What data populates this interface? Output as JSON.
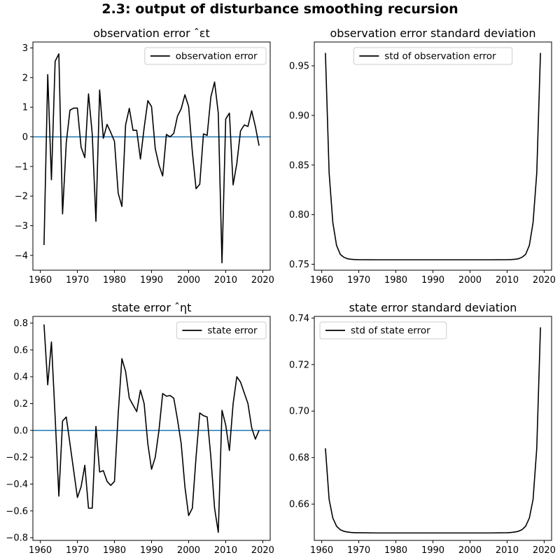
{
  "figure": {
    "suptitle": "2.3: output of disturbance smoothing recursion"
  },
  "chart_data": [
    {
      "type": "line",
      "title": "observation error ˆεt",
      "xlabel": "",
      "ylabel": "",
      "xlim": [
        1958,
        2022
      ],
      "ylim": [
        -4.5,
        3.2
      ],
      "xticks": [
        1960,
        1970,
        1980,
        1990,
        2000,
        2010,
        2020
      ],
      "yticks": [
        -4,
        -3,
        -2,
        -1,
        0,
        1,
        2,
        3
      ],
      "legend_position": "upper-right",
      "zero_line": {
        "y": 0,
        "color": "#1f77b4"
      },
      "series": [
        {
          "name": "observation error",
          "color": "#000000",
          "x": [
            1961,
            1962,
            1963,
            1964,
            1965,
            1966,
            1967,
            1968,
            1969,
            1970,
            1971,
            1972,
            1973,
            1974,
            1975,
            1976,
            1977,
            1978,
            1979,
            1980,
            1981,
            1982,
            1983,
            1984,
            1985,
            1986,
            1987,
            1988,
            1989,
            1990,
            1991,
            1992,
            1993,
            1994,
            1995,
            1996,
            1997,
            1998,
            1999,
            2000,
            2001,
            2002,
            2003,
            2004,
            2005,
            2006,
            2007,
            2008,
            2009,
            2010,
            2011,
            2012,
            2013,
            2014,
            2015,
            2016,
            2017,
            2018,
            2019
          ],
          "values": [
            -3.65,
            2.1,
            -1.45,
            2.55,
            2.8,
            -2.6,
            -0.2,
            0.9,
            0.97,
            0.97,
            -0.35,
            -0.7,
            1.45,
            0.1,
            -2.85,
            1.58,
            -0.05,
            0.42,
            0.15,
            -0.15,
            -1.9,
            -2.35,
            0.4,
            0.96,
            0.22,
            0.22,
            -0.75,
            0.3,
            1.22,
            1.02,
            -0.4,
            -0.95,
            -1.32,
            0.08,
            0.0,
            0.12,
            0.7,
            0.95,
            1.42,
            1.02,
            -0.5,
            -1.75,
            -1.6,
            0.1,
            0.05,
            1.35,
            1.85,
            0.8,
            -4.25,
            0.6,
            0.8,
            -1.62,
            -0.9,
            0.2,
            0.4,
            0.35,
            0.88,
            0.35,
            -0.3
          ]
        }
      ]
    },
    {
      "type": "line",
      "title": "observation error standard deviation",
      "xlabel": "",
      "ylabel": "",
      "xlim": [
        1958,
        2022
      ],
      "ylim": [
        0.744,
        0.974
      ],
      "xticks": [
        1960,
        1970,
        1980,
        1990,
        2000,
        2010,
        2020
      ],
      "yticks": [
        0.75,
        0.8,
        0.85,
        0.9,
        0.95
      ],
      "yticks_labels": [
        "0.75",
        "0.80",
        "0.85",
        "0.90",
        "0.95"
      ],
      "legend_position": "upper-center",
      "series": [
        {
          "name": "std of observation error",
          "color": "#000000",
          "x": [
            1961,
            1962,
            1963,
            1964,
            1965,
            1966,
            1967,
            1968,
            1969,
            1970,
            1975,
            1980,
            1985,
            1990,
            1995,
            2000,
            2005,
            2010,
            2011,
            2012,
            2013,
            2014,
            2015,
            2016,
            2017,
            2018,
            2019
          ],
          "values": [
            0.963,
            0.842,
            0.792,
            0.769,
            0.76,
            0.757,
            0.7555,
            0.755,
            0.7547,
            0.7546,
            0.7545,
            0.7545,
            0.7545,
            0.7545,
            0.7545,
            0.7545,
            0.7545,
            0.7546,
            0.7547,
            0.755,
            0.7555,
            0.757,
            0.76,
            0.769,
            0.792,
            0.842,
            0.963
          ]
        }
      ]
    },
    {
      "type": "line",
      "title": "state error ˆηt",
      "xlabel": "",
      "ylabel": "",
      "xlim": [
        1958,
        2022
      ],
      "ylim": [
        -0.82,
        0.85
      ],
      "xticks": [
        1960,
        1970,
        1980,
        1990,
        2000,
        2010,
        2020
      ],
      "yticks": [
        -0.8,
        -0.6,
        -0.4,
        -0.2,
        0.0,
        0.2,
        0.4,
        0.6,
        0.8
      ],
      "yticks_labels": [
        "−0.8",
        "−0.6",
        "−0.4",
        "−0.2",
        "0.0",
        "0.2",
        "0.4",
        "0.6",
        "0.8"
      ],
      "legend_position": "upper-right",
      "zero_line": {
        "y": 0,
        "color": "#1f77b4"
      },
      "series": [
        {
          "name": "state error",
          "color": "#000000",
          "x": [
            1961,
            1962,
            1963,
            1964,
            1965,
            1966,
            1967,
            1968,
            1969,
            1970,
            1971,
            1972,
            1973,
            1974,
            1975,
            1976,
            1977,
            1978,
            1979,
            1980,
            1981,
            1982,
            1983,
            1984,
            1985,
            1986,
            1987,
            1988,
            1989,
            1990,
            1991,
            1992,
            1993,
            1994,
            1995,
            1996,
            1997,
            1998,
            1999,
            2000,
            2001,
            2002,
            2003,
            2004,
            2005,
            2006,
            2007,
            2008,
            2009,
            2010,
            2011,
            2012,
            2013,
            2014,
            2015,
            2016,
            2017,
            2018,
            2019
          ],
          "values": [
            0.79,
            0.34,
            0.66,
            0.1,
            -0.49,
            0.07,
            0.1,
            -0.1,
            -0.3,
            -0.5,
            -0.42,
            -0.26,
            -0.58,
            -0.58,
            0.03,
            -0.31,
            -0.3,
            -0.38,
            -0.41,
            -0.38,
            0.12,
            0.535,
            0.44,
            0.24,
            0.19,
            0.14,
            0.3,
            0.2,
            -0.1,
            -0.29,
            -0.2,
            0.0,
            0.275,
            0.255,
            0.26,
            0.24,
            0.08,
            -0.1,
            -0.42,
            -0.635,
            -0.58,
            -0.2,
            0.13,
            0.11,
            0.1,
            -0.2,
            -0.58,
            -0.76,
            0.15,
            0.04,
            -0.15,
            0.2,
            0.4,
            0.36,
            0.28,
            0.2,
            0.02,
            -0.065,
            0.0
          ]
        }
      ]
    },
    {
      "type": "line",
      "title": "state error standard deviation",
      "xlabel": "",
      "ylabel": "",
      "xlim": [
        1958,
        2022
      ],
      "ylim": [
        0.6444,
        0.7407
      ],
      "xticks": [
        1960,
        1970,
        1980,
        1990,
        2000,
        2010,
        2020
      ],
      "yticks": [
        0.66,
        0.68,
        0.7,
        0.72,
        0.74
      ],
      "yticks_labels": [
        "0.66",
        "0.68",
        "0.70",
        "0.72",
        "0.74"
      ],
      "legend_position": "upper-left",
      "series": [
        {
          "name": "std of state error",
          "color": "#000000",
          "x": [
            1961,
            1962,
            1963,
            1964,
            1965,
            1966,
            1967,
            1968,
            1969,
            1970,
            1975,
            1980,
            1985,
            1990,
            1995,
            2000,
            2005,
            2010,
            2011,
            2012,
            2013,
            2014,
            2015,
            2016,
            2017,
            2018,
            2019
          ],
          "values": [
            0.684,
            0.662,
            0.654,
            0.6505,
            0.649,
            0.6483,
            0.648,
            0.6478,
            0.6477,
            0.6477,
            0.6476,
            0.6476,
            0.6476,
            0.6476,
            0.6476,
            0.6476,
            0.6476,
            0.6477,
            0.6478,
            0.648,
            0.6483,
            0.649,
            0.6505,
            0.654,
            0.662,
            0.684,
            0.736
          ]
        }
      ]
    }
  ]
}
